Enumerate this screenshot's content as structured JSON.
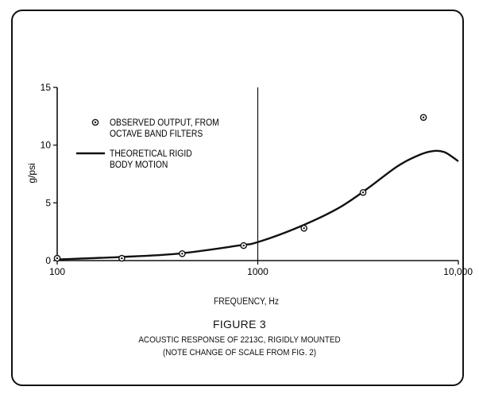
{
  "figure": {
    "number_label": "FIGURE 3",
    "caption_line1": "ACOUSTIC RESPONSE OF 2213C, RIGIDLY MOUNTED",
    "caption_line2": "(NOTE CHANGE OF SCALE FROM FIG. 2)"
  },
  "chart_data": {
    "type": "line",
    "title": "",
    "xlabel": "FREQUENCY, Hz",
    "ylabel": "g/psi",
    "x_scale": "log",
    "xlim": [
      100,
      10000
    ],
    "ylim": [
      0,
      15
    ],
    "x_ticks": [
      100,
      1000,
      10000
    ],
    "x_tick_labels": [
      "100",
      "1000",
      "10,000"
    ],
    "y_ticks": [
      0,
      5,
      10,
      15
    ],
    "y_tick_labels": [
      "0",
      "5",
      "10",
      "15"
    ],
    "grid": "single vertical line at 1000 Hz",
    "legend_position": "top-left",
    "series": [
      {
        "name": "OBSERVED OUTPUT, FROM OCTAVE BAND FILTERS",
        "type": "scatter",
        "marker": "circle-dot",
        "x": [
          100,
          210,
          420,
          850,
          1700,
          3350,
          6700
        ],
        "y": [
          0.2,
          0.2,
          0.6,
          1.3,
          2.8,
          5.9,
          12.4
        ]
      },
      {
        "name": "THEORETICAL RIGID BODY MOTION",
        "type": "line",
        "x": [
          100,
          200,
          400,
          800,
          1000,
          1600,
          2500,
          3500,
          5000,
          6500,
          7600,
          8500,
          9300,
          10000
        ],
        "y": [
          0.1,
          0.3,
          0.6,
          1.3,
          1.6,
          2.9,
          4.5,
          6.2,
          8.2,
          9.2,
          9.5,
          9.4,
          9.0,
          8.6
        ]
      }
    ]
  }
}
